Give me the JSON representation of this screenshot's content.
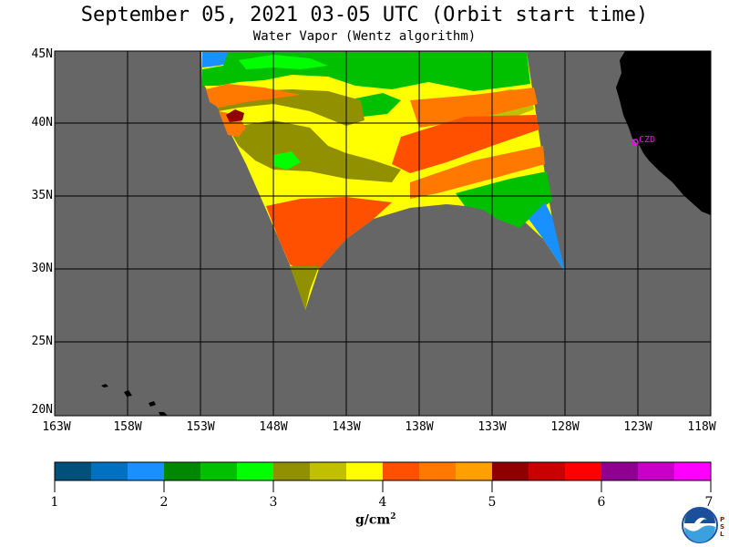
{
  "title": "September 05, 2021  03-05 UTC  (Orbit start time)",
  "subtitle": "Water Vapor (Wentz algorithm)",
  "map": {
    "lat_labels": [
      "45N",
      "40N",
      "35N",
      "30N",
      "25N",
      "20N"
    ],
    "lon_labels": [
      "163W",
      "158W",
      "153W",
      "148W",
      "143W",
      "138W",
      "133W",
      "128W",
      "123W",
      "118W"
    ],
    "station_label": "CZD",
    "background_color": "#666666",
    "land_color": "#000000"
  },
  "colorbar": {
    "tick_labels": [
      "1",
      "2",
      "3",
      "4",
      "5",
      "6",
      "7"
    ],
    "units": "g/cm",
    "units_exponent": "2",
    "colors": [
      "#00507a",
      "#0070c0",
      "#1890ff",
      "#008800",
      "#00c000",
      "#00ff00",
      "#909000",
      "#c0c000",
      "#ffff00",
      "#ff5000",
      "#ff7800",
      "#ffa000",
      "#900000",
      "#c80000",
      "#ff0000",
      "#900090",
      "#c800c8",
      "#ff00ff"
    ]
  },
  "logo": {
    "name": "NOAA",
    "side_text": "PSL"
  }
}
